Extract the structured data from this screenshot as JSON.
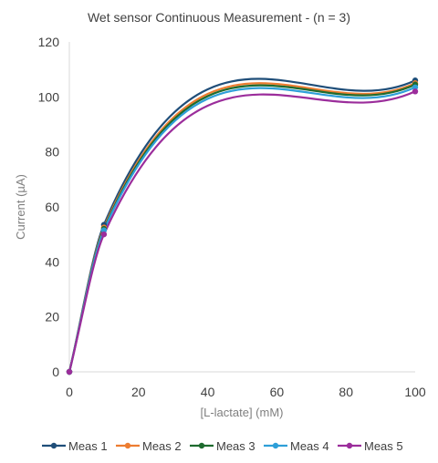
{
  "chart_data": {
    "type": "line",
    "title": "Wet sensor Continuous Measurement  - (n = 3)",
    "xlabel": "[L-lactate] (mM)",
    "ylabel": "Current (µA)",
    "xlim": [
      0,
      100
    ],
    "ylim": [
      0,
      120
    ],
    "x_ticks": [
      "0",
      "20",
      "40",
      "60",
      "80",
      "100"
    ],
    "y_ticks": [
      "0",
      "20",
      "40",
      "60",
      "80",
      "100",
      "120"
    ],
    "x": [
      0,
      10,
      100
    ],
    "grid": false,
    "legend_position": "bottom",
    "series": [
      {
        "name": "Meas 1",
        "color": "#1f4e79",
        "values": [
          0,
          53.5,
          106
        ]
      },
      {
        "name": "Meas 2",
        "color": "#ed7d31",
        "values": [
          0,
          52.5,
          105
        ]
      },
      {
        "name": "Meas 3",
        "color": "#1e6b2e",
        "values": [
          0,
          52,
          104.5
        ]
      },
      {
        "name": "Meas 4",
        "color": "#2e9fd8",
        "values": [
          0,
          51.5,
          103.5
        ]
      },
      {
        "name": "Meas 5",
        "color": "#9b2d9b",
        "values": [
          0,
          50,
          102
        ]
      }
    ]
  }
}
